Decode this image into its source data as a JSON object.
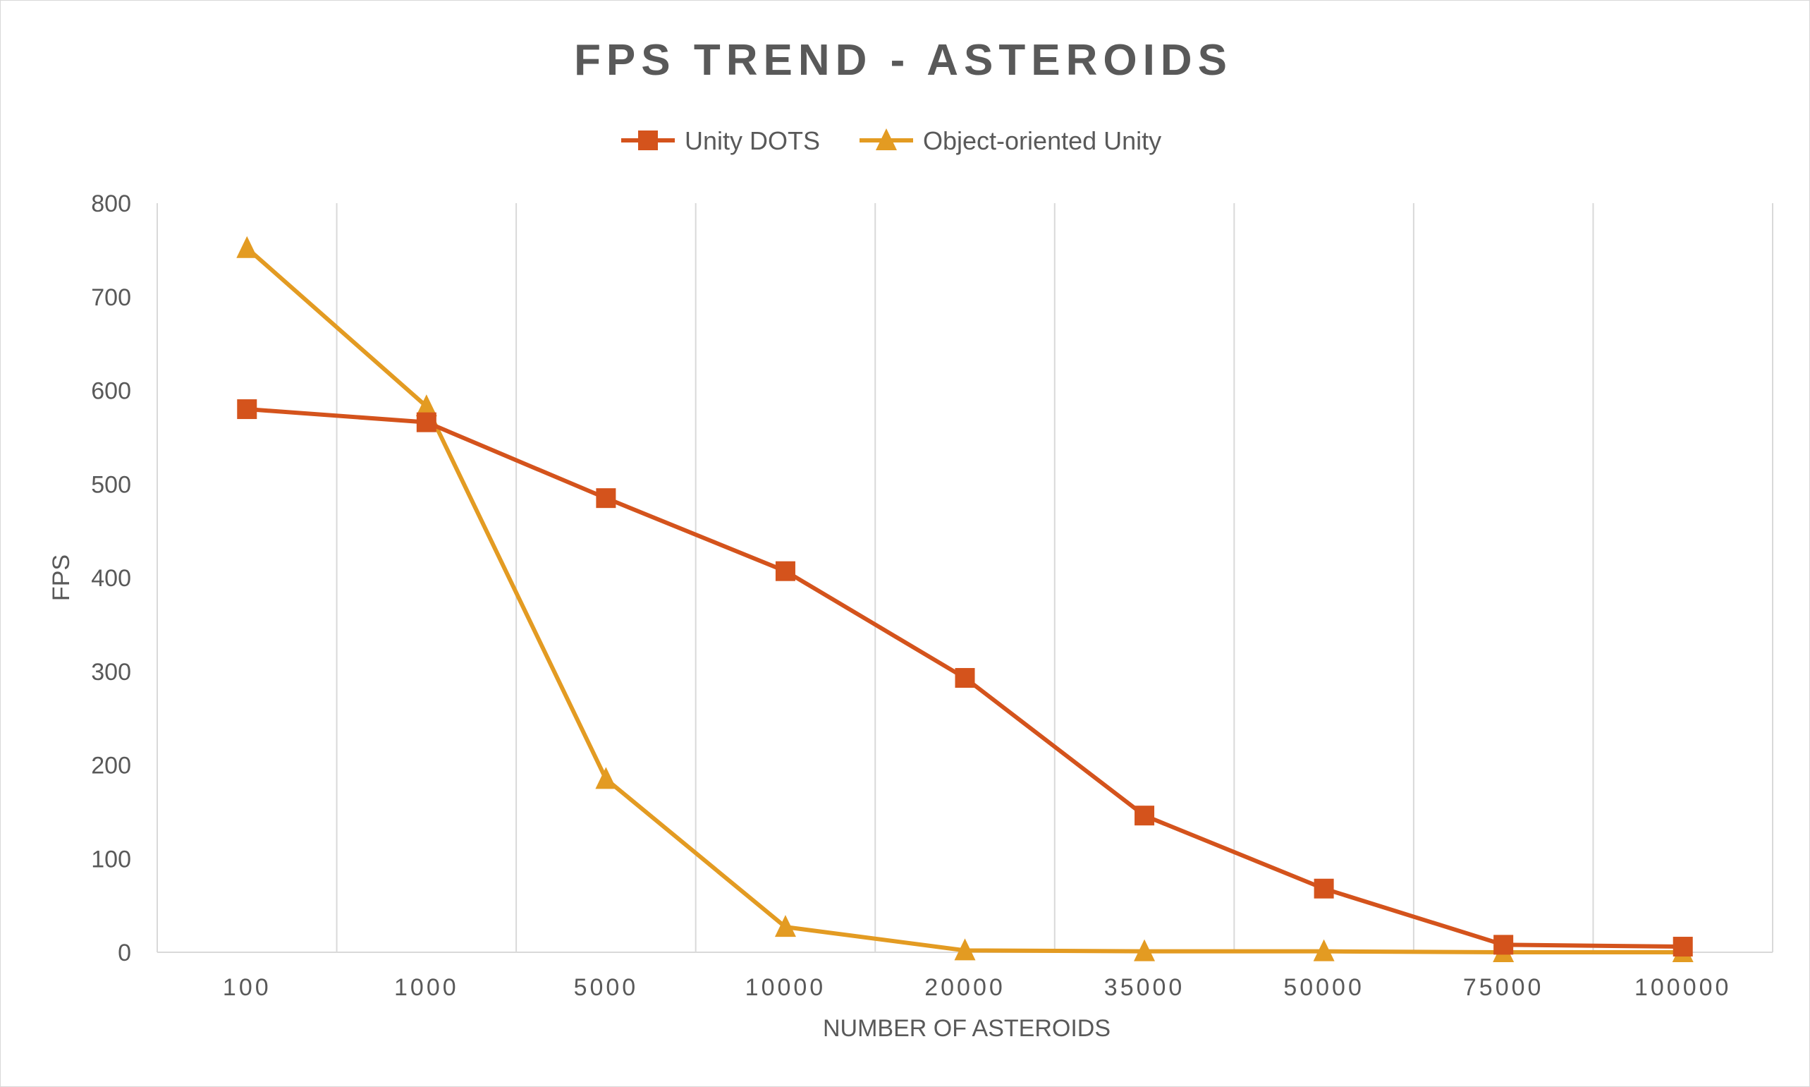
{
  "chart_data": {
    "type": "line",
    "title": "FPS TREND - ASTEROIDS",
    "xlabel": "NUMBER OF ASTEROIDS",
    "ylabel": "FPS",
    "categories": [
      "100",
      "1000",
      "5000",
      "10000",
      "20000",
      "35000",
      "50000",
      "75000",
      "100000"
    ],
    "ylim": [
      0,
      800
    ],
    "yticks": [
      "0",
      "100",
      "200",
      "300",
      "400",
      "500",
      "600",
      "700",
      "800"
    ],
    "grid": "vertical",
    "legend": "top",
    "series": [
      {
        "name": "Unity DOTS",
        "color": "#D4531C",
        "marker": "square",
        "values": [
          580,
          566,
          485,
          407,
          293,
          146,
          68,
          8,
          6
        ]
      },
      {
        "name": "Object-oriented Unity",
        "color": "#E39B22",
        "marker": "triangle",
        "values": [
          752,
          583,
          185,
          27,
          2,
          1,
          1,
          0,
          0
        ]
      }
    ]
  }
}
